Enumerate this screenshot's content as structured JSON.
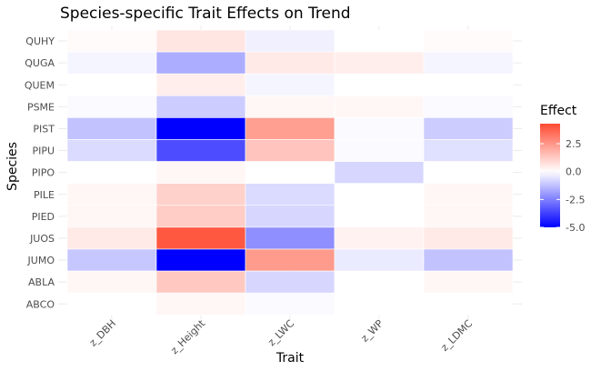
{
  "chart_data": {
    "type": "heatmap",
    "title": "Species-specific Trait Effects on Trend",
    "xlabel": "Trait",
    "ylabel": "Species",
    "x_categories": [
      "z_DBH",
      "z_Height",
      "z_LWC",
      "z_WP",
      "z_LDMC"
    ],
    "y_categories": [
      "QUHY",
      "QUGA",
      "QUEM",
      "PSME",
      "PIST",
      "PIPU",
      "PIPO",
      "PILE",
      "PIED",
      "JUOS",
      "JUMO",
      "ABLA",
      "ABCO"
    ],
    "values": [
      [
        0.1,
        0.6,
        -0.3,
        0.0,
        0.1
      ],
      [
        -0.2,
        -1.6,
        0.5,
        0.4,
        -0.2
      ],
      [
        0.0,
        0.4,
        -0.2,
        0.0,
        0.0
      ],
      [
        -0.1,
        -1.0,
        0.2,
        0.2,
        -0.1
      ],
      [
        -1.2,
        -5.6,
        2.3,
        -0.1,
        -1.0
      ],
      [
        -0.7,
        -3.5,
        1.4,
        -0.1,
        -0.6
      ],
      [
        0.0,
        0.2,
        0.0,
        -0.8,
        0.0
      ],
      [
        0.2,
        1.1,
        -0.7,
        0.0,
        0.2
      ],
      [
        0.2,
        1.2,
        -0.8,
        0.0,
        0.2
      ],
      [
        0.5,
        4.0,
        -2.2,
        0.3,
        0.5
      ],
      [
        -1.1,
        -5.9,
        2.4,
        -0.4,
        -1.2
      ],
      [
        0.2,
        1.3,
        -0.8,
        0.0,
        0.2
      ],
      [
        0.0,
        0.2,
        -0.1,
        0.0,
        0.0
      ]
    ],
    "legend": {
      "title": "Effect",
      "ticks": [
        {
          "value": 2.5,
          "label": "2.5"
        },
        {
          "value": 0.0,
          "label": "0.0"
        },
        {
          "value": -2.5,
          "label": "-2.5"
        },
        {
          "value": -5.0,
          "label": "-5.0"
        }
      ],
      "range": [
        -5.0,
        4.3
      ],
      "placement": "right"
    },
    "colors": {
      "low": "#0000FF",
      "mid": "#FFFFFF",
      "high": "#FF4B33",
      "grid": "#ebebeb"
    },
    "grid": true
  }
}
